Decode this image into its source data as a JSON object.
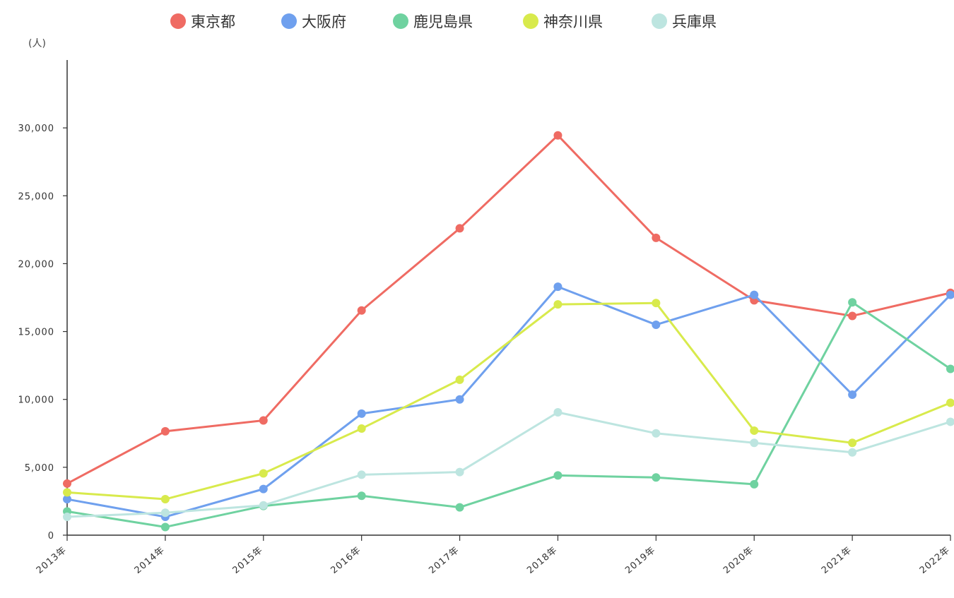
{
  "chart_data": {
    "type": "line",
    "title": "",
    "xlabel": "",
    "ylabel": "",
    "unit_label": "(人)",
    "ylim": [
      0,
      35000
    ],
    "yticks": [
      0,
      5000,
      10000,
      15000,
      20000,
      25000,
      30000
    ],
    "ytick_labels": [
      "0",
      "5,000",
      "10,000",
      "15,000",
      "20,000",
      "25,000",
      "30,000"
    ],
    "categories": [
      "2013年",
      "2014年",
      "2015年",
      "2016年",
      "2017年",
      "2018年",
      "2019年",
      "2020年",
      "2021年",
      "2022年"
    ],
    "legend_position": "top-center",
    "grid": false,
    "series": [
      {
        "name": "東京都",
        "color": "#ef6b63",
        "values": [
          3800,
          7650,
          8450,
          16550,
          22600,
          29450,
          21900,
          17300,
          16150,
          17850
        ]
      },
      {
        "name": "大阪府",
        "color": "#6fa0ee",
        "values": [
          2650,
          1350,
          3400,
          8950,
          10000,
          18300,
          15500,
          17700,
          10350,
          17700
        ]
      },
      {
        "name": "鹿児島県",
        "color": "#6fd2a0",
        "values": [
          1750,
          600,
          2150,
          2900,
          2050,
          4400,
          4250,
          3750,
          17150,
          12250
        ]
      },
      {
        "name": "神奈川県",
        "color": "#d8ea4c",
        "values": [
          3150,
          2650,
          4550,
          7850,
          11450,
          17000,
          17100,
          7700,
          6800,
          9750
        ]
      },
      {
        "name": "兵庫県",
        "color": "#bde5e0",
        "values": [
          1350,
          1650,
          2200,
          4450,
          4650,
          9050,
          7500,
          6800,
          6100,
          8350
        ]
      }
    ]
  }
}
